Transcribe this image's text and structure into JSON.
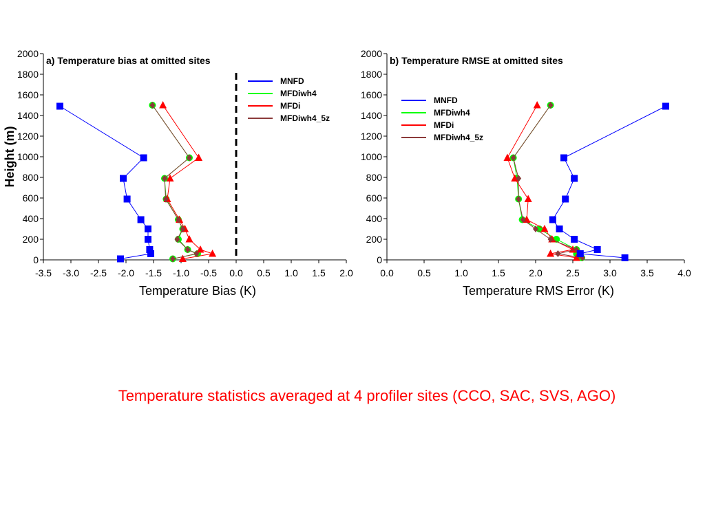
{
  "caption": {
    "text": "Temperature statistics averaged at 4 profiler sites (CCO, SAC, SVS, AGO)",
    "color": "#ff0000"
  },
  "series_colors": {
    "MNFD": "#0000ff",
    "MFDiwh4": "#00ff00",
    "MFDi": "#ff0000",
    "MFDiwh4_5z": "#8b3a3a"
  },
  "chart_data": [
    {
      "type": "line",
      "title": "a) Temperature bias at omitted sites",
      "xlabel": "Temperature Bias (K)",
      "ylabel": "Height (m)",
      "xlim": [
        -3.5,
        2.0
      ],
      "ylim": [
        0,
        2000
      ],
      "xticks": [
        "-3.5",
        "-3.0",
        "-2.5",
        "-2.0",
        "-1.5",
        "-1.0",
        "-0.5",
        "0.0",
        "0.5",
        "1.0",
        "1.5",
        "2.0"
      ],
      "yticks": [
        "0",
        "200",
        "400",
        "600",
        "800",
        "1000",
        "1200",
        "1400",
        "1600",
        "1800",
        "2000"
      ],
      "grid": false,
      "reference_line": {
        "x": 0.0,
        "style": "dashed"
      },
      "legend_position": "top-right",
      "series": [
        {
          "name": "MNFD",
          "marker": "square",
          "points": [
            [
              -2.1,
              10
            ],
            [
              -1.55,
              60
            ],
            [
              -1.57,
              100
            ],
            [
              -1.6,
              200
            ],
            [
              -1.6,
              300
            ],
            [
              -1.73,
              390
            ],
            [
              -1.98,
              590
            ],
            [
              -2.05,
              790
            ],
            [
              -1.68,
              990
            ],
            [
              -3.2,
              1490
            ]
          ]
        },
        {
          "name": "MFDiwh4",
          "marker": "circle",
          "points": [
            [
              -1.15,
              10
            ],
            [
              -0.7,
              60
            ],
            [
              -0.88,
              100
            ],
            [
              -1.05,
              200
            ],
            [
              -0.97,
              300
            ],
            [
              -1.05,
              390
            ],
            [
              -1.27,
              590
            ],
            [
              -1.3,
              790
            ],
            [
              -0.85,
              990
            ],
            [
              -1.52,
              1500
            ]
          ]
        },
        {
          "name": "MFDi",
          "marker": "triangle",
          "points": [
            [
              -0.97,
              10
            ],
            [
              -0.43,
              60
            ],
            [
              -0.65,
              100
            ],
            [
              -0.85,
              200
            ],
            [
              -0.93,
              300
            ],
            [
              -1.03,
              390
            ],
            [
              -1.25,
              590
            ],
            [
              -1.2,
              790
            ],
            [
              -0.68,
              990
            ],
            [
              -1.33,
              1500
            ]
          ]
        },
        {
          "name": "MFDiwh4_5z",
          "marker": "diamond",
          "points": [
            [
              -1.15,
              10
            ],
            [
              -0.72,
              60
            ],
            [
              -0.88,
              100
            ],
            [
              -1.07,
              200
            ],
            [
              -0.97,
              300
            ],
            [
              -1.05,
              390
            ],
            [
              -1.28,
              590
            ],
            [
              -1.3,
              790
            ],
            [
              -0.85,
              990
            ],
            [
              -1.52,
              1500
            ]
          ]
        }
      ]
    },
    {
      "type": "line",
      "title": "b) Temperature RMSE at omitted sites",
      "xlabel": "Temperature RMS Error (K)",
      "ylabel": "",
      "xlim": [
        0.0,
        4.0
      ],
      "ylim": [
        0,
        2000
      ],
      "xticks": [
        "0.0",
        "0.5",
        "1.0",
        "1.5",
        "2.0",
        "2.5",
        "3.0",
        "3.5",
        "4.0"
      ],
      "yticks": [
        "0",
        "200",
        "400",
        "600",
        "800",
        "1000",
        "1200",
        "1400",
        "1600",
        "1800",
        "2000"
      ],
      "grid": false,
      "legend_position": "top-left",
      "series": [
        {
          "name": "MNFD",
          "marker": "square",
          "points": [
            [
              3.2,
              20
            ],
            [
              2.6,
              60
            ],
            [
              2.83,
              100
            ],
            [
              2.52,
              200
            ],
            [
              2.32,
              300
            ],
            [
              2.23,
              390
            ],
            [
              2.4,
              590
            ],
            [
              2.52,
              790
            ],
            [
              2.38,
              990
            ],
            [
              3.75,
              1490
            ]
          ]
        },
        {
          "name": "MFDiwh4",
          "marker": "circle",
          "points": [
            [
              2.62,
              20
            ],
            [
              2.55,
              60
            ],
            [
              2.55,
              100
            ],
            [
              2.28,
              200
            ],
            [
              2.05,
              300
            ],
            [
              1.82,
              390
            ],
            [
              1.77,
              590
            ],
            [
              1.75,
              790
            ],
            [
              1.7,
              990
            ],
            [
              2.2,
              1500
            ]
          ]
        },
        {
          "name": "MFDi",
          "marker": "triangle",
          "points": [
            [
              2.55,
              20
            ],
            [
              2.2,
              60
            ],
            [
              2.5,
              100
            ],
            [
              2.22,
              200
            ],
            [
              2.12,
              300
            ],
            [
              1.88,
              390
            ],
            [
              1.9,
              590
            ],
            [
              1.72,
              790
            ],
            [
              1.62,
              990
            ],
            [
              2.02,
              1500
            ]
          ]
        },
        {
          "name": "MFDiwh4_5z",
          "marker": "diamond",
          "points": [
            [
              2.63,
              20
            ],
            [
              2.3,
              60
            ],
            [
              2.55,
              100
            ],
            [
              2.2,
              200
            ],
            [
              2.0,
              300
            ],
            [
              1.83,
              390
            ],
            [
              1.77,
              590
            ],
            [
              1.77,
              790
            ],
            [
              1.7,
              990
            ],
            [
              2.2,
              1500
            ]
          ]
        }
      ]
    }
  ]
}
